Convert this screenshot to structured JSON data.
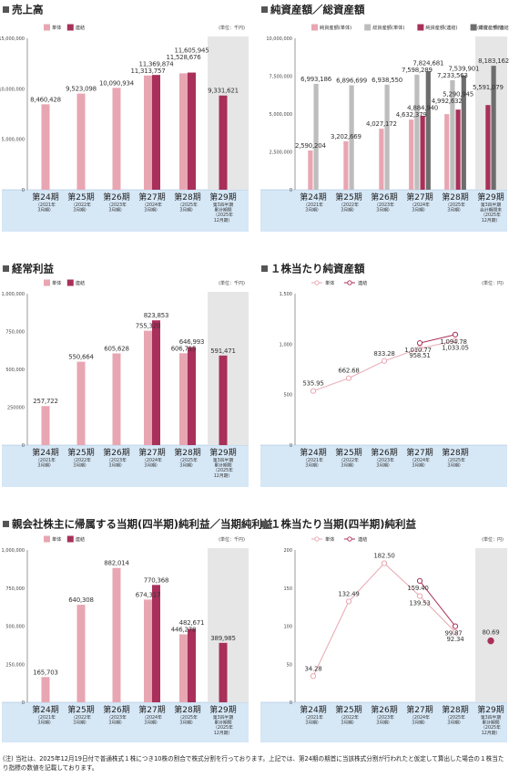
{
  "chart_data": [
    {
      "id": "sales",
      "type": "bar",
      "title": "売上高",
      "unit_label": "(単位：千円)",
      "legend": [
        "単体",
        "連結"
      ],
      "yticks": [
        "15,000,000",
        "10,000,000",
        "5,000,000",
        "0"
      ],
      "ylim": [
        0,
        15000000
      ],
      "categories": [
        {
          "label": "第24期",
          "sub": [
            "（2021年",
            "3月期）"
          ]
        },
        {
          "label": "第25期",
          "sub": [
            "（2022年",
            "3月期）"
          ]
        },
        {
          "label": "第26期",
          "sub": [
            "（2023年",
            "3月期）"
          ]
        },
        {
          "label": "第27期",
          "sub": [
            "（2024年",
            "3月期）"
          ]
        },
        {
          "label": "第28期",
          "sub": [
            "（2025年",
            "3月期）"
          ]
        },
        {
          "label": "第29期",
          "sub": [
            "第3四半期",
            "累計期間",
            "（2025年",
            "12月期）"
          ]
        }
      ],
      "series": [
        {
          "name": "単体",
          "color": "#e8a6b2",
          "values": [
            8460428,
            9523098,
            10090934,
            11313757,
            11528676,
            null
          ],
          "labels": [
            "8,460,428",
            "9,523,098",
            "10,090,934",
            "11,313,757",
            "11,528,676",
            ""
          ]
        },
        {
          "name": "連結",
          "color": "#a8305a",
          "values": [
            null,
            null,
            null,
            11369874,
            11605945,
            9331621
          ],
          "labels": [
            "",
            "",
            "",
            "11,369,874",
            "11,605,945",
            "9,331,621"
          ]
        }
      ]
    },
    {
      "id": "assets",
      "type": "bar",
      "title": "純資産額／総資産額",
      "unit_label": "(単位：千円)",
      "legend": [
        "純資産額(単体)",
        "総資産額(単体)",
        "純資産額(連結)",
        "総資産額(連結)"
      ],
      "yticks": [
        "10,000,000",
        "7,500,000",
        "5,000,000",
        "2,500,000",
        "0"
      ],
      "ylim": [
        0,
        10000000
      ],
      "categories": [
        {
          "label": "第24期",
          "sub": [
            "（2021年",
            "3月期）"
          ]
        },
        {
          "label": "第25期",
          "sub": [
            "（2022年",
            "3月期）"
          ]
        },
        {
          "label": "第26期",
          "sub": [
            "（2023年",
            "3月期）"
          ]
        },
        {
          "label": "第27期",
          "sub": [
            "（2024年",
            "3月期）"
          ]
        },
        {
          "label": "第28期",
          "sub": [
            "（2025年",
            "3月期）"
          ]
        },
        {
          "label": "第29期",
          "sub": [
            "第3四半期",
            "会計期間末",
            "（2025年",
            "12月期）"
          ]
        }
      ],
      "series": [
        {
          "name": "純資産額(単体)",
          "color": "#e8a6b2",
          "values": [
            2590204,
            3202669,
            4027172,
            4632379,
            4992632,
            null
          ],
          "labels": [
            "2,590,204",
            "3,202,669",
            "4,027,172",
            "4,632,379",
            "4,992,632",
            ""
          ]
        },
        {
          "name": "総資産額(単体)",
          "color": "#bdbdbd",
          "values": [
            6993186,
            6896699,
            6938550,
            7598289,
            7233563,
            null
          ],
          "labels": [
            "6,993,186",
            "6,896,699",
            "6,938,550",
            "7,598,289",
            "7,233,563",
            ""
          ]
        },
        {
          "name": "純資産額(連結)",
          "color": "#a8305a",
          "values": [
            null,
            null,
            null,
            4884940,
            5290945,
            5591079
          ],
          "labels": [
            "",
            "",
            "",
            "4,884,940",
            "5,290,945",
            "5,591,079"
          ]
        },
        {
          "name": "総資産額(連結)",
          "color": "#6d6d6d",
          "values": [
            null,
            null,
            null,
            7824681,
            7539901,
            8183162
          ],
          "labels": [
            "",
            "",
            "",
            "7,824,681",
            "7,539,901",
            "8,183,162"
          ]
        }
      ]
    },
    {
      "id": "ordinary",
      "type": "bar",
      "title": "経常利益",
      "unit_label": "(単位：千円)",
      "legend": [
        "単体",
        "連結"
      ],
      "yticks": [
        "1,000,000",
        "750,000",
        "500,000",
        "250000",
        "0"
      ],
      "ylim": [
        0,
        1000000
      ],
      "categories": [
        {
          "label": "第24期",
          "sub": [
            "（2021年",
            "3月期）"
          ]
        },
        {
          "label": "第25期",
          "sub": [
            "（2022年",
            "3月期）"
          ]
        },
        {
          "label": "第26期",
          "sub": [
            "（2023年",
            "3月期）"
          ]
        },
        {
          "label": "第27期",
          "sub": [
            "（2024年",
            "3月期）"
          ]
        },
        {
          "label": "第28期",
          "sub": [
            "（2025年",
            "3月期）"
          ]
        },
        {
          "label": "第29期",
          "sub": [
            "第3四半期",
            "累計期間",
            "（2025年",
            "12月期）"
          ]
        }
      ],
      "series": [
        {
          "name": "単体",
          "color": "#e8a6b2",
          "values": [
            257722,
            550664,
            605628,
            755320,
            606715,
            null
          ],
          "labels": [
            "257,722",
            "550,664",
            "605,628",
            "755,320",
            "606,715",
            ""
          ]
        },
        {
          "name": "連結",
          "color": "#a8305a",
          "values": [
            null,
            null,
            null,
            823853,
            646993,
            591471
          ],
          "labels": [
            "",
            "",
            "",
            "823,853",
            "646,993",
            "591,471"
          ]
        }
      ]
    },
    {
      "id": "bps",
      "type": "line",
      "title": "１株当たり純資産額",
      "unit_label": "(単位：円)",
      "legend": [
        "単体",
        "連結"
      ],
      "yticks": [
        "1,500",
        "1,000",
        "500",
        "0"
      ],
      "ylim": [
        0,
        1500
      ],
      "categories": [
        {
          "label": "第24期",
          "sub": [
            "（2021年",
            "3月期）"
          ]
        },
        {
          "label": "第25期",
          "sub": [
            "（2022年",
            "3月期）"
          ]
        },
        {
          "label": "第26期",
          "sub": [
            "（2023年",
            "3月期）"
          ]
        },
        {
          "label": "第27期",
          "sub": [
            "（2024年",
            "3月期）"
          ]
        },
        {
          "label": "第28期",
          "sub": [
            "（2025年",
            "3月期）"
          ]
        }
      ],
      "series": [
        {
          "name": "単体",
          "color": "#e8a6b2",
          "values": [
            535.95,
            662.68,
            833.28,
            958.51,
            1033.05
          ],
          "labels": [
            "535.95",
            "662.68",
            "833.28",
            "958.51",
            "1,033.05"
          ]
        },
        {
          "name": "連結",
          "color": "#a8305a",
          "values": [
            null,
            null,
            null,
            1010.77,
            1094.78
          ],
          "labels": [
            "",
            "",
            "",
            "1,010.77",
            "1,094.78"
          ]
        }
      ]
    },
    {
      "id": "netincome",
      "type": "bar",
      "title": "親会社株主に帰属する当期(四半期)純利益／当期純利益",
      "unit_label": "(単位：千円)",
      "legend": [
        "単体",
        "連結"
      ],
      "yticks": [
        "1,000,000",
        "750,000",
        "500,000",
        "250,000",
        "0"
      ],
      "ylim": [
        0,
        1000000
      ],
      "categories": [
        {
          "label": "第24期",
          "sub": [
            "（2021年",
            "3月期）"
          ]
        },
        {
          "label": "第25期",
          "sub": [
            "（2022年",
            "3月期）"
          ]
        },
        {
          "label": "第26期",
          "sub": [
            "（2023年",
            "3月期）"
          ]
        },
        {
          "label": "第27期",
          "sub": [
            "（2024年",
            "3月期）"
          ]
        },
        {
          "label": "第28期",
          "sub": [
            "（2025年",
            "3月期）"
          ]
        },
        {
          "label": "第29期",
          "sub": [
            "第3四半期",
            "累計期間",
            "（2025年",
            "12月期）"
          ]
        }
      ],
      "series": [
        {
          "name": "単体",
          "color": "#e8a6b2",
          "values": [
            165703,
            640308,
            882014,
            674317,
            446278,
            null
          ],
          "labels": [
            "165,703",
            "640,308",
            "882,014",
            "674,317",
            "446,278",
            ""
          ]
        },
        {
          "name": "連結",
          "color": "#a8305a",
          "values": [
            null,
            null,
            null,
            770368,
            482671,
            389985
          ],
          "labels": [
            "",
            "",
            "",
            "770,368",
            "482,671",
            "389,985"
          ]
        }
      ]
    },
    {
      "id": "eps",
      "type": "line",
      "title": "１株当たり当期(四半期)純利益",
      "unit_label": "(単位：円)",
      "legend": [
        "単体",
        "連結"
      ],
      "yticks": [
        "200",
        "150",
        "100",
        "50",
        "0"
      ],
      "ylim": [
        0,
        200
      ],
      "categories": [
        {
          "label": "第24期",
          "sub": [
            "（2021年",
            "3月期）"
          ]
        },
        {
          "label": "第25期",
          "sub": [
            "（2022年",
            "3月期）"
          ]
        },
        {
          "label": "第26期",
          "sub": [
            "（2023年",
            "3月期）"
          ]
        },
        {
          "label": "第27期",
          "sub": [
            "（2024年",
            "3月期）"
          ]
        },
        {
          "label": "第28期",
          "sub": [
            "（2025年",
            "3月期）"
          ]
        },
        {
          "label": "第29期",
          "sub": [
            "第3四半期",
            "累計期間",
            "（2025年",
            "12月期）"
          ]
        }
      ],
      "series": [
        {
          "name": "単体",
          "color": "#e8a6b2",
          "values": [
            34.28,
            132.49,
            182.5,
            139.53,
            92.34,
            null
          ],
          "labels": [
            "34.28",
            "132.49",
            "182.50",
            "139.53",
            "92.34",
            ""
          ]
        },
        {
          "name": "連結",
          "color": "#a8305a",
          "values": [
            null,
            null,
            null,
            159.4,
            99.87,
            80.69
          ],
          "labels": [
            "",
            "",
            "",
            "159.40",
            "99.87",
            "80.69"
          ]
        }
      ]
    }
  ],
  "note": "(注) 当社は、2025年12月19日付で普通株式１株につき10株の割合で株式分割を行っております。上記では、第24期の期首に当該株式分割が行われたと仮定して算出した場合の１株当たり指標の数値を記載しております。"
}
